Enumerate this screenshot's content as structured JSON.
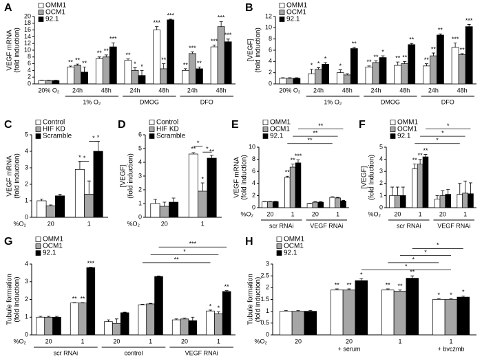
{
  "chart_data": [
    {
      "type": "bar",
      "label": "A",
      "ylabel": [
        "VEGF mRNA",
        "(fold induction)"
      ],
      "categories": [
        "20% O₂",
        "24h",
        "48h",
        "24h",
        "48h",
        "24h",
        "48h"
      ],
      "groups": [
        null,
        "1% O₂",
        "1% O₂",
        "DMOG",
        "DMOG",
        "DFO",
        "DFO"
      ],
      "ylim": [
        0,
        20
      ],
      "yticks": [
        0,
        2,
        4,
        6,
        8,
        10,
        12,
        14,
        16,
        18,
        20
      ],
      "legend": true,
      "series": [
        {
          "name": "OMM1",
          "color": "#ffffff",
          "values": [
            1,
            5,
            7.5,
            7,
            16,
            4,
            11
          ],
          "errors": [
            0.1,
            0.3,
            0.5,
            0.4,
            1,
            0.5,
            0.5
          ],
          "stars": [
            null,
            "**",
            "**",
            "**",
            "***",
            "**",
            "***"
          ]
        },
        {
          "name": "OCM1",
          "color": "#a6a6a6",
          "values": [
            1,
            5.5,
            8,
            4,
            4.5,
            9,
            17
          ],
          "errors": [
            0.1,
            0.4,
            0.6,
            0.8,
            1.5,
            0.5,
            1.5
          ],
          "stars": [
            null,
            "**",
            "**",
            "*",
            "**",
            "***",
            "***"
          ]
        },
        {
          "name": "92.1",
          "color": "#000000",
          "values": [
            1,
            3.5,
            11,
            2.5,
            19,
            4.5,
            12.5
          ],
          "errors": [
            0.1,
            1.5,
            1.2,
            1.5,
            0.2,
            0.5,
            0.8
          ],
          "stars": [
            null,
            "**",
            "***",
            "*",
            "***",
            "**",
            "***"
          ]
        }
      ]
    },
    {
      "type": "bar",
      "label": "B",
      "ylabel": [
        "[VEGF]",
        "(fold induction)"
      ],
      "categories": [
        "20% O₂",
        "24h",
        "48h",
        "24h",
        "48h",
        "24h",
        "48h"
      ],
      "groups": [
        null,
        "1% O₂",
        "1% O₂",
        "DMOG",
        "DMOG",
        "DFO",
        "DFO"
      ],
      "ylim": [
        0,
        12
      ],
      "yticks": [
        0,
        2,
        4,
        6,
        8,
        10,
        12
      ],
      "legend": true,
      "series": [
        {
          "name": "OMM1",
          "color": "#ffffff",
          "values": [
            1,
            1.8,
            2,
            3,
            3.3,
            3.2,
            6.5
          ],
          "errors": [
            0.1,
            0.8,
            0.5,
            0.2,
            0.6,
            0.4,
            0.8
          ],
          "stars": [
            null,
            "*",
            "*",
            "**",
            "**",
            "**",
            "***"
          ]
        },
        {
          "name": "OCM1",
          "color": "#a6a6a6",
          "values": [
            1,
            2.6,
            1.6,
            3.8,
            3.6,
            5,
            5.2
          ],
          "errors": [
            0.1,
            0.3,
            0.2,
            0.3,
            0.4,
            0.5,
            0.2
          ],
          "stars": [
            null,
            "*",
            null,
            "**",
            "**",
            "**",
            "**"
          ]
        },
        {
          "name": "92.1",
          "color": "#000000",
          "values": [
            1,
            3.5,
            6.3,
            4.7,
            7,
            8.7,
            10.2
          ],
          "errors": [
            0.1,
            0.3,
            0.2,
            0.3,
            0.2,
            0.2,
            0.4
          ],
          "stars": [
            null,
            "*",
            "**",
            "*",
            "**",
            "**",
            "***"
          ]
        }
      ]
    },
    {
      "type": "bar",
      "label": "C",
      "ylabel": [
        "VEGF mRNA",
        "(fold induction)"
      ],
      "xlabel": "%O₂",
      "categories": [
        "20",
        "1"
      ],
      "ylim": [
        0,
        5
      ],
      "yticks": [
        0,
        1,
        2,
        3,
        4,
        5
      ],
      "legend": true,
      "comparisons": [
        "*",
        "*"
      ],
      "series": [
        {
          "name": "Control",
          "color": "#ffffff",
          "values": [
            1,
            2.9
          ],
          "errors": [
            0.1,
            0.5
          ],
          "stars": [
            null,
            "*"
          ]
        },
        {
          "name": "HIF KD",
          "color": "#a6a6a6",
          "values": [
            0.7,
            1.4
          ],
          "errors": [
            0.05,
            0.8
          ],
          "stars": [
            null,
            null
          ]
        },
        {
          "name": "Scramble",
          "color": "#000000",
          "values": [
            1.3,
            4
          ],
          "errors": [
            0.1,
            0.6
          ],
          "stars": [
            null,
            "*"
          ]
        }
      ]
    },
    {
      "type": "bar",
      "label": "D",
      "ylabel": [
        "[VEGF]",
        "(fold induction)"
      ],
      "xlabel": "%O₂",
      "categories": [
        "20",
        "1"
      ],
      "ylim": [
        0,
        6
      ],
      "yticks": [
        0,
        1,
        2,
        3,
        4,
        5,
        6
      ],
      "legend": true,
      "comparisons": [
        "*",
        "*"
      ],
      "series": [
        {
          "name": "Control",
          "color": "#ffffff",
          "values": [
            1,
            4.6
          ],
          "errors": [
            0.3,
            0.1
          ],
          "stars": [
            null,
            "**"
          ]
        },
        {
          "name": "HIF KD",
          "color": "#a6a6a6",
          "values": [
            0.8,
            1.9
          ],
          "errors": [
            0.3,
            0.6
          ],
          "stars": [
            null,
            "*"
          ]
        },
        {
          "name": "Scramble",
          "color": "#000000",
          "values": [
            1.1,
            4.3
          ],
          "errors": [
            0.3,
            0.2
          ],
          "stars": [
            null,
            "**"
          ]
        }
      ]
    },
    {
      "type": "bar",
      "label": "E",
      "ylabel": [
        "VEGF mRNA",
        "(fold induction)"
      ],
      "xlabel": "%O₂",
      "categories": [
        "20",
        "1",
        "20",
        "1"
      ],
      "groups": [
        "scr RNAi",
        "scr RNAi",
        "VEGF RNAi",
        "VEGF RNAi"
      ],
      "ylim": [
        0,
        10
      ],
      "yticks": [
        0,
        2,
        4,
        6,
        8,
        10
      ],
      "legend": true,
      "comparisons": [
        "**",
        "**",
        "**"
      ],
      "series": [
        {
          "name": "OMM1",
          "color": "#ffffff",
          "values": [
            1,
            5,
            0.7,
            1.7
          ],
          "errors": [
            0.05,
            0.2,
            0.05,
            0.1
          ],
          "stars": [
            null,
            "**",
            null,
            null
          ]
        },
        {
          "name": "OCM1",
          "color": "#a6a6a6",
          "values": [
            1,
            6.7,
            0.9,
            1.6
          ],
          "errors": [
            0.05,
            0.5,
            0.1,
            0.1
          ],
          "stars": [
            null,
            "**",
            null,
            null
          ]
        },
        {
          "name": "92.1",
          "color": "#000000",
          "values": [
            1,
            7.4,
            0.9,
            1.1
          ],
          "errors": [
            0.05,
            0.5,
            0.1,
            0.1
          ],
          "stars": [
            null,
            "***",
            null,
            null
          ]
        }
      ]
    },
    {
      "type": "bar",
      "label": "F",
      "ylabel": [
        "[VEGF]",
        "(fold Induction)"
      ],
      "xlabel": "%O₂",
      "categories": [
        "20",
        "1",
        "20",
        "1"
      ],
      "groups": [
        "scr RNAi",
        "scr RNAi",
        "VEGF RNAi",
        "VEGF RNAi"
      ],
      "ylim": [
        0,
        5
      ],
      "yticks": [
        0,
        1,
        2,
        3,
        4,
        5
      ],
      "legend": true,
      "comparisons": [
        "*",
        "*",
        "*"
      ],
      "series": [
        {
          "name": "OMM1",
          "color": "#ffffff",
          "values": [
            1,
            3.2,
            0.7,
            1.1
          ],
          "errors": [
            0.7,
            0.4,
            0.3,
            0.9
          ],
          "stars": [
            null,
            "**",
            null,
            null
          ]
        },
        {
          "name": "OCM1",
          "color": "#a6a6a6",
          "values": [
            1,
            3.6,
            1,
            1.2
          ],
          "errors": [
            0.7,
            0.4,
            0.4,
            1
          ],
          "stars": [
            null,
            "**",
            null,
            null
          ]
        },
        {
          "name": "92.1",
          "color": "#000000",
          "values": [
            1,
            4.2,
            1.1,
            1.15
          ],
          "errors": [
            0.7,
            0.2,
            0.4,
            0.9
          ],
          "stars": [
            null,
            "**",
            null,
            null
          ]
        }
      ]
    },
    {
      "type": "bar",
      "label": "G",
      "ylabel": [
        "Tubule formation",
        "(fold Induction)"
      ],
      "xlabel": "%O₂",
      "categories": [
        "20",
        "1",
        "20",
        "1",
        "20",
        "1"
      ],
      "groups": [
        "scr RNAi",
        "scr RNAi",
        "control",
        "control",
        "VEGF RNAi",
        "VEGF RNAi"
      ],
      "ylim": [
        0,
        4
      ],
      "yticks": [
        0,
        1,
        2,
        3,
        4
      ],
      "legend": true,
      "comparisons": [
        "***",
        "*",
        "**"
      ],
      "series": [
        {
          "name": "OMM1",
          "color": "#ffffff",
          "values": [
            1,
            1.8,
            0.75,
            1.7,
            0.85,
            1.35
          ],
          "errors": [
            0.05,
            0.02,
            0.1,
            0.03,
            0.05,
            0.05
          ],
          "stars": [
            null,
            "**",
            null,
            null,
            null,
            "*"
          ]
        },
        {
          "name": "OCM1",
          "color": "#a6a6a6",
          "values": [
            1,
            1.8,
            0.65,
            1.75,
            0.9,
            1.2
          ],
          "errors": [
            0.05,
            0.02,
            0.25,
            0.03,
            0.05,
            0.1
          ],
          "stars": [
            null,
            "**",
            null,
            null,
            null,
            "*"
          ]
        },
        {
          "name": "92.1",
          "color": "#000000",
          "values": [
            1,
            3.8,
            1.25,
            3.3,
            0.8,
            2.45
          ],
          "errors": [
            0.05,
            0.02,
            0.03,
            0.03,
            0.2,
            0.05
          ],
          "stars": [
            null,
            "***",
            null,
            null,
            null,
            "**"
          ]
        }
      ]
    },
    {
      "type": "bar",
      "label": "H",
      "ylabel": [
        "Tubule formation",
        "(fold induction)"
      ],
      "xlabel": "%O₂",
      "categories": [
        "20",
        "20",
        "1",
        "1"
      ],
      "groups": [
        null,
        "+ serum",
        null,
        "+ bvczmb"
      ],
      "ylim": [
        0,
        3
      ],
      "yticks": [
        0,
        0.5,
        1,
        1.5,
        2,
        2.5,
        3
      ],
      "legend": true,
      "comparisons": [
        "*",
        "*",
        "*",
        "*"
      ],
      "series": [
        {
          "name": "OMM1",
          "color": "#ffffff",
          "values": [
            1,
            1.9,
            1.9,
            1.5
          ],
          "errors": [
            0.03,
            0.05,
            0.05,
            0.03
          ],
          "stars": [
            null,
            "**",
            "**",
            "*"
          ]
        },
        {
          "name": "OCM1",
          "color": "#a6a6a6",
          "values": [
            1,
            1.9,
            1.85,
            1.5
          ],
          "errors": [
            0.03,
            0.05,
            0.05,
            0.03
          ],
          "stars": [
            null,
            "**",
            "**",
            "*"
          ]
        },
        {
          "name": "92.1",
          "color": "#000000",
          "values": [
            1,
            2.3,
            2.4,
            1.6
          ],
          "errors": [
            0.03,
            0.08,
            0.1,
            0.05
          ],
          "stars": [
            null,
            "*",
            "**",
            "*"
          ]
        }
      ]
    }
  ]
}
